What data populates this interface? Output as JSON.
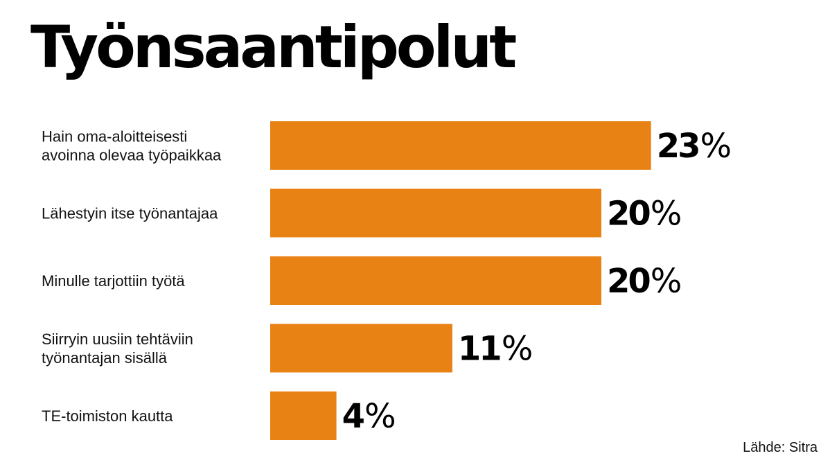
{
  "title": "Työnsaantipolut",
  "source": "Lähde: Sitra",
  "colors": {
    "bar": "#E88214",
    "text": "#111111",
    "background": "#FFFFFF"
  },
  "chart_data": {
    "type": "bar",
    "orientation": "horizontal",
    "title": "Työnsaantipolut",
    "xlabel": "",
    "ylabel": "",
    "unit": "%",
    "categories": [
      [
        "Hain oma-aloitteisesti",
        "avoinna olevaa työpaikkaa"
      ],
      [
        "Lähestyin itse työnantajaa"
      ],
      [
        "Minulle tarjottiin työtä"
      ],
      [
        "Siirryin uusiin tehtäviin",
        "työnantajan sisällä"
      ],
      [
        "TE-toimiston kautta"
      ]
    ],
    "values": [
      23,
      20,
      20,
      11,
      4
    ],
    "value_labels": [
      "23",
      "20",
      "20",
      "11",
      "4"
    ],
    "grid": false,
    "legend": "none"
  }
}
